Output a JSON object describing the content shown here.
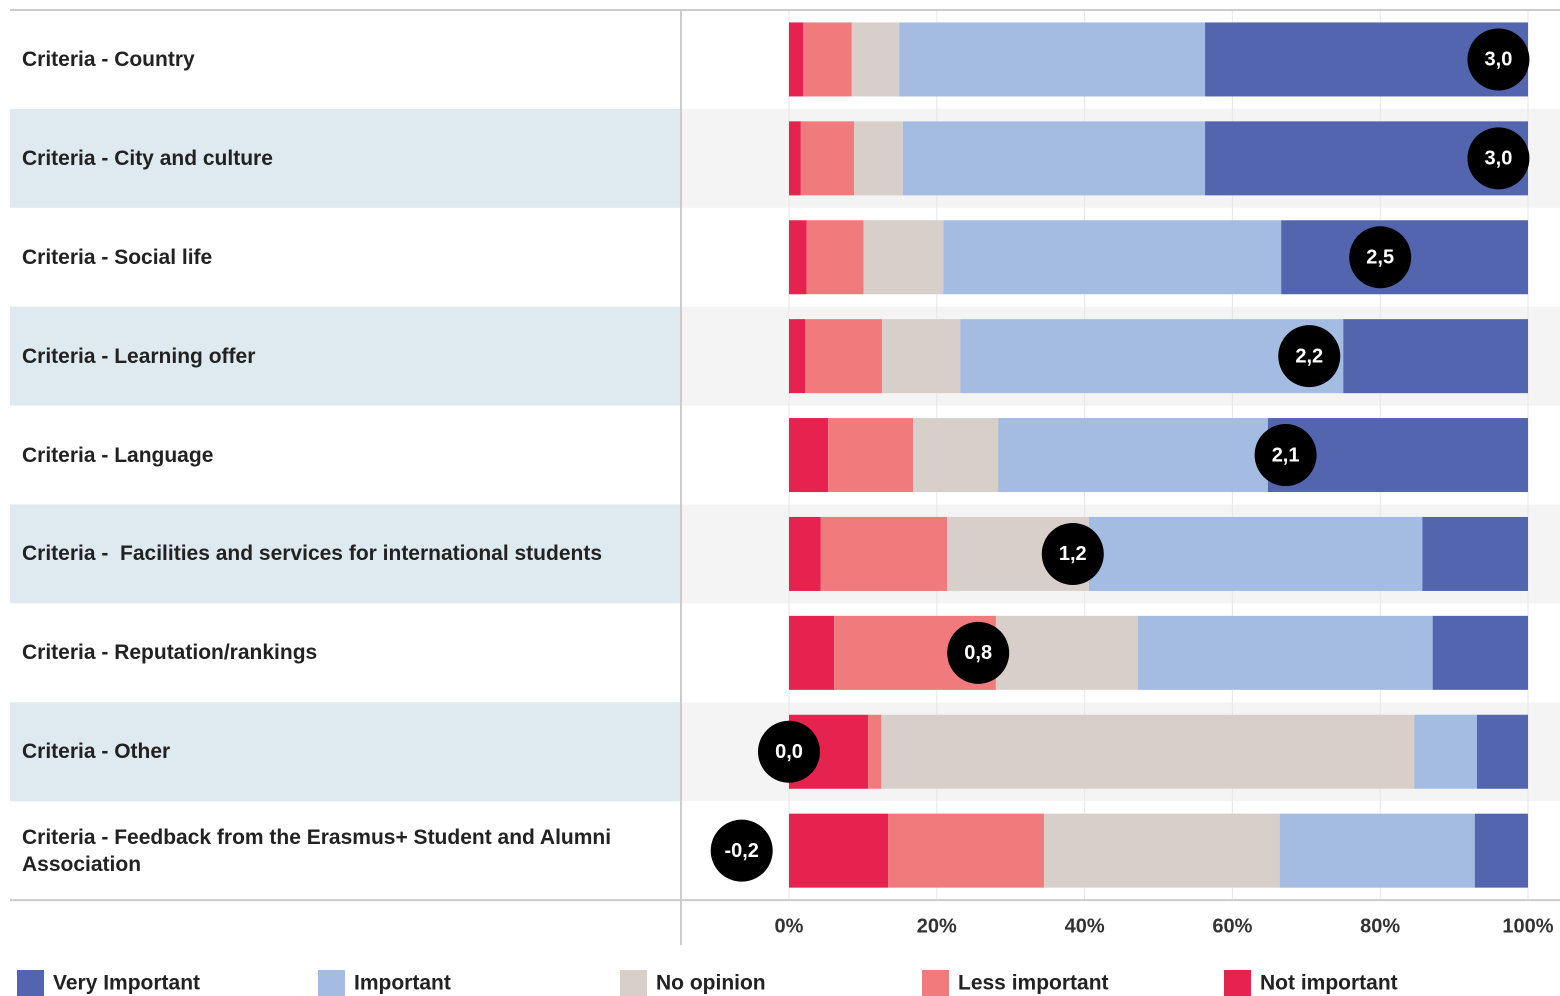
{
  "chart_data": {
    "type": "bar",
    "orientation": "horizontal",
    "stacked": true,
    "categories": [
      "Criteria - Country",
      "Criteria - City and culture",
      "Criteria - Social life",
      "Criteria - Learning offer",
      "Criteria - Language",
      "Criteria -  Facilities and services for international students",
      "Criteria - Reputation/rankings",
      "Criteria - Other",
      "Criteria - Feedback from the Erasmus+ Student and Alumni Association"
    ],
    "series": [
      {
        "name": "Very Important",
        "color": "#5365ae",
        "values": [
          43.7,
          43.7,
          33.4,
          25.0,
          35.2,
          14.3,
          12.9,
          6.9,
          7.2
        ]
      },
      {
        "name": "Important",
        "color": "#a4bbe2",
        "values": [
          41.4,
          40.9,
          45.7,
          51.8,
          36.5,
          45.1,
          39.9,
          8.5,
          26.4
        ]
      },
      {
        "name": "No opinion",
        "color": "#d9cfca",
        "values": [
          6.4,
          6.6,
          10.8,
          10.6,
          11.5,
          19.2,
          19.2,
          72.1,
          31.9
        ]
      },
      {
        "name": "Less important",
        "color": "#f07a7c",
        "values": [
          6.6,
          7.2,
          7.7,
          10.4,
          11.5,
          17.1,
          21.9,
          1.8,
          21.1
        ]
      },
      {
        "name": "Not important",
        "color": "#e6224e",
        "values": [
          1.9,
          1.6,
          2.4,
          2.2,
          5.3,
          4.3,
          6.1,
          10.7,
          13.4
        ]
      }
    ],
    "scores": [
      3.0,
      3.0,
      2.5,
      2.2,
      2.1,
      1.2,
      0.8,
      0.0,
      -0.2
    ],
    "score_labels": [
      "3,0",
      "3,0",
      "2,5",
      "2,2",
      "2,1",
      "1,2",
      "0,8",
      "0,0",
      "-0,2"
    ],
    "xlim": [
      0,
      100
    ],
    "xticks": [
      {
        "value": 0,
        "label": "0%"
      },
      {
        "value": 20,
        "label": "20%"
      },
      {
        "value": 40,
        "label": "40%"
      },
      {
        "value": 60,
        "label": "60%"
      },
      {
        "value": 80,
        "label": "80%"
      },
      {
        "value": 100,
        "label": "100%"
      }
    ],
    "grid": true,
    "legend": "bottom"
  }
}
